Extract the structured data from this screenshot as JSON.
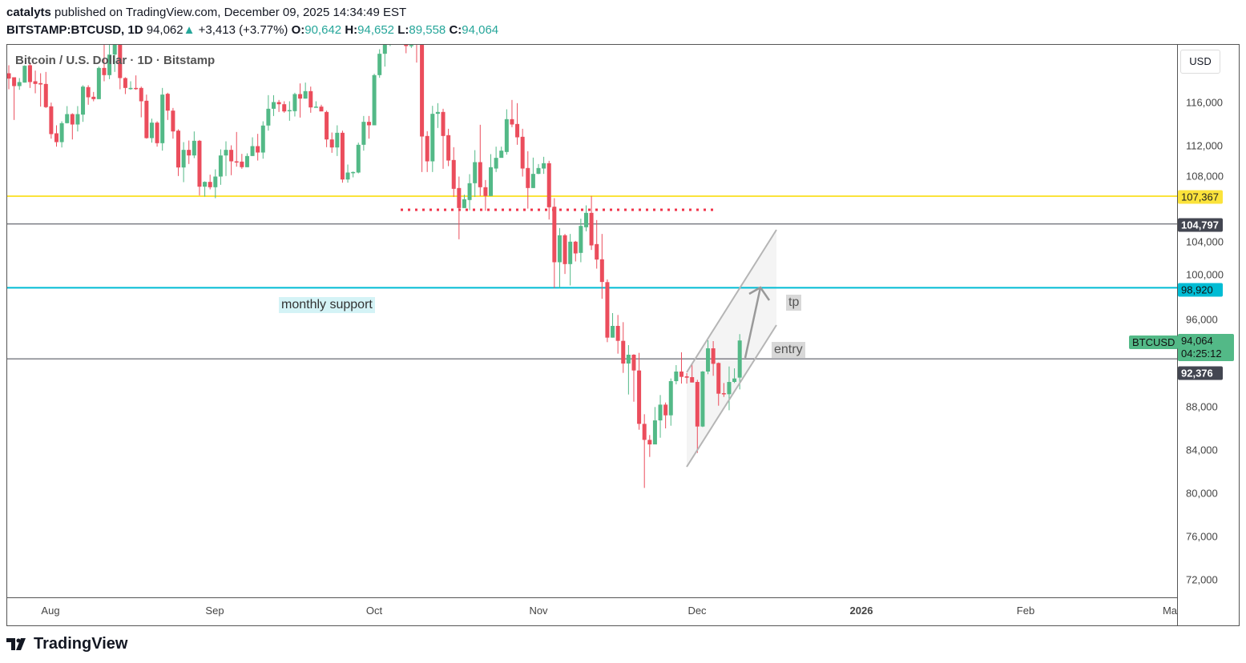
{
  "header": {
    "author": "catalyts",
    "published": " published on TradingView.com, December 09, 2025 14:34:49 EST",
    "symbol": "BITSTAMP:BTCUSD, 1D",
    "last": "94,062",
    "change": "+3,413 (+3.77%)",
    "o_label": "O:",
    "o": "90,642",
    "h_label": "H:",
    "h": "94,652",
    "l_label": "L:",
    "l": "89,558",
    "c_label": "C:",
    "c": "94,064"
  },
  "legend": "Bitcoin / U.S. Dollar · 1D · Bitstamp",
  "currency": "USD",
  "branding": "TradingView",
  "colors": {
    "up": "#53b987",
    "down": "#eb4d5c",
    "yellow": "#fbe33b",
    "cyan": "#00bcd4",
    "dark": "#434651"
  },
  "chart_data": {
    "type": "candlestick",
    "title": "Bitcoin / U.S. Dollar · 1D · Bitstamp",
    "start_date": "2025-07-24",
    "end_date": "2025-12-09",
    "ylim": [
      69500,
      121400
    ],
    "y_ticks": [
      "116,000",
      "112,000",
      "108,000",
      "104,000",
      "100,000",
      "96,000",
      "88,000",
      "84,000",
      "80,000",
      "76,000",
      "72,000"
    ],
    "x_ticks": [
      "Aug",
      "Sep",
      "Oct",
      "Nov",
      "Dec",
      "2026",
      "Feb",
      "Ma"
    ],
    "ohlc": [
      [
        118694,
        119432,
        117218,
        118202
      ],
      [
        118325,
        118325,
        114389,
        117513
      ],
      [
        117513,
        118251,
        117169,
        117882
      ],
      [
        117833,
        119432,
        117833,
        119383
      ],
      [
        119432,
        119678,
        117341,
        117882
      ],
      [
        117956,
        118940,
        116849,
        117710
      ],
      [
        117784,
        118694,
        115619,
        117661
      ],
      [
        117710,
        118817,
        115496,
        115570
      ],
      [
        115644,
        115988,
        112667,
        113085
      ],
      [
        113159,
        113897,
        111929,
        112347
      ],
      [
        112347,
        114266,
        111855,
        114094
      ],
      [
        114094,
        115668,
        114069,
        114930
      ],
      [
        114930,
        115004,
        112593,
        113971
      ],
      [
        113971,
        115668,
        113331,
        114930
      ],
      [
        114881,
        117587,
        114217,
        117464
      ],
      [
        117415,
        117587,
        115791,
        116480
      ],
      [
        116529,
        116972,
        116111,
        116308
      ],
      [
        116308,
        119309,
        116308,
        119186
      ],
      [
        119186,
        121500,
        117956,
        118522
      ],
      [
        118522,
        122300,
        118153,
        120416
      ],
      [
        120416,
        123500,
        118817,
        121800
      ],
      [
        121800,
        124400,
        117218,
        118251
      ],
      [
        118251,
        118325,
        116775,
        117341
      ],
      [
        117292,
        117956,
        117169,
        117341
      ],
      [
        117341,
        118497,
        117169,
        117292
      ],
      [
        117341,
        117464,
        114635,
        116111
      ],
      [
        116160,
        116726,
        112667,
        112716
      ],
      [
        112716,
        114512,
        112298,
        114143
      ],
      [
        114143,
        114266,
        111929,
        112249
      ],
      [
        112249,
        117341,
        111560,
        116726
      ],
      [
        116800,
        116898,
        114389,
        115250
      ],
      [
        115250,
        115496,
        112667,
        113331
      ],
      [
        113405,
        113528,
        109223,
        110010
      ],
      [
        110010,
        112347,
        108657,
        111634
      ],
      [
        111634,
        112495,
        110330,
        111117
      ],
      [
        111117,
        113331,
        110871,
        112470
      ],
      [
        112470,
        112544,
        107427,
        108239
      ],
      [
        108239,
        108731,
        107329,
        108682
      ],
      [
        108682,
        109346,
        107993,
        108190
      ],
      [
        108190,
        109838,
        107181,
        109174
      ],
      [
        109174,
        111683,
        108411,
        111117
      ],
      [
        111117,
        112421,
        109223,
        111634
      ],
      [
        111634,
        112052,
        109297,
        110576
      ],
      [
        110576,
        113282,
        110084,
        110551
      ],
      [
        110551,
        111265,
        109887,
        110035
      ],
      [
        110035,
        111314,
        110035,
        111068
      ],
      [
        111068,
        112790,
        111068,
        111978
      ],
      [
        111978,
        113110,
        110650,
        111388
      ],
      [
        111388,
        114266,
        110822,
        113876
      ],
      [
        113876,
        116677,
        113405,
        115422
      ],
      [
        115422,
        116677,
        114758,
        116037
      ],
      [
        116037,
        116234,
        115127,
        115840
      ],
      [
        115840,
        116111,
        115053,
        115176
      ],
      [
        115250,
        116111,
        114315,
        115299
      ],
      [
        115201,
        116898,
        114709,
        116775
      ],
      [
        116775,
        117759,
        114610,
        116357
      ],
      [
        116357,
        117833,
        116357,
        117046
      ],
      [
        117046,
        117464,
        115053,
        115545
      ],
      [
        115570,
        116111,
        115545,
        115619
      ],
      [
        115619,
        115791,
        115250,
        115176
      ],
      [
        115127,
        115250,
        111880,
        112593
      ],
      [
        112593,
        113233,
        111363,
        111855
      ],
      [
        111855,
        113897,
        111068,
        113208
      ],
      [
        113208,
        113405,
        108608,
        108903
      ],
      [
        108903,
        110281,
        108608,
        109543
      ],
      [
        109543,
        109641,
        109100,
        109592
      ],
      [
        109543,
        112298,
        109469,
        112101
      ],
      [
        112101,
        114758,
        111560,
        114217
      ],
      [
        114217,
        114758,
        112667,
        113897
      ],
      [
        113897,
        118645,
        113897,
        118522
      ],
      [
        118522,
        120908,
        118276,
        120490
      ],
      [
        120490,
        122600,
        119309,
        121800
      ],
      [
        121800,
        123800,
        121200,
        123200
      ],
      [
        123200,
        125600,
        122800,
        124600
      ],
      [
        124600,
        126200,
        122600,
        123000
      ],
      [
        123000,
        124200,
        120539,
        121203
      ],
      [
        121200,
        121800,
        121031,
        121300
      ],
      [
        122300,
        123100,
        119678,
        121400
      ],
      [
        121400,
        121600,
        109592,
        112864
      ],
      [
        112913,
        113356,
        109592,
        110576
      ],
      [
        110576,
        115693,
        109592,
        114955
      ],
      [
        114955,
        115939,
        113651,
        115127
      ],
      [
        115127,
        115422,
        109887,
        112913
      ],
      [
        112987,
        113577,
        110133,
        110650
      ],
      [
        110699,
        111880,
        107304,
        108042
      ],
      [
        108116,
        109174,
        103393,
        106271
      ],
      [
        106271,
        107501,
        106271,
        107083
      ],
      [
        107009,
        109395,
        106074,
        108559
      ],
      [
        108559,
        111609,
        107304,
        110502
      ],
      [
        110502,
        113946,
        107378,
        108190
      ],
      [
        108190,
        108854,
        106025,
        107378
      ],
      [
        107378,
        111240,
        107378,
        110035
      ],
      [
        109912,
        111929,
        109592,
        110896
      ],
      [
        110896,
        111929,
        111191,
        111560
      ],
      [
        111437,
        115373,
        111191,
        114463
      ],
      [
        114463,
        116234,
        113725,
        113971
      ],
      [
        114020,
        115939,
        112101,
        112790
      ],
      [
        112839,
        113577,
        109174,
        109912
      ],
      [
        109961,
        111511,
        106222,
        108116
      ],
      [
        108116,
        110920,
        108116,
        109420
      ],
      [
        109420,
        110330,
        109395,
        109961
      ],
      [
        109912,
        110994,
        109420,
        110404
      ],
      [
        110404,
        110625,
        105213,
        106345
      ],
      [
        106394,
        107181,
        98891,
        101277
      ],
      [
        101277,
        104426,
        98891,
        103762
      ],
      [
        103762,
        103885,
        100195,
        101105
      ],
      [
        101105,
        103885,
        99137,
        103172
      ],
      [
        103172,
        103245,
        101351,
        102089
      ],
      [
        102138,
        105287,
        101277,
        104623
      ],
      [
        104500,
        106517,
        104131,
        105828
      ],
      [
        105828,
        107378,
        102409,
        102827
      ],
      [
        102950,
        105164,
        100687,
        101523
      ],
      [
        101548,
        103885,
        97907,
        99457
      ],
      [
        99444,
        99690,
        93909,
        94327
      ],
      [
        94327,
        96590,
        94327,
        95409
      ],
      [
        95409,
        96418,
        92851,
        94032
      ],
      [
        94032,
        95754,
        91080,
        91941
      ],
      [
        91941,
        93638,
        89087,
        92753
      ],
      [
        92753,
        92802,
        88423,
        91301
      ],
      [
        91301,
        92925,
        85840,
        86381
      ],
      [
        86381,
        87267,
        80477,
        84905
      ],
      [
        84905,
        85348,
        83331,
        84487
      ],
      [
        84487,
        87931,
        84487,
        86701
      ],
      [
        86701,
        89038,
        85102,
        88152
      ],
      [
        88152,
        88349,
        85963,
        87168
      ],
      [
        87168,
        90563,
        86209,
        90317
      ],
      [
        90317,
        91793,
        90022,
        91203
      ],
      [
        91203,
        92974,
        90096,
        90711
      ],
      [
        90760,
        91055,
        90096,
        90637
      ],
      [
        90686,
        91867,
        90194,
        90194
      ],
      [
        90243,
        90440,
        83700,
        86135
      ],
      [
        86135,
        91252,
        86086,
        91203
      ],
      [
        91203,
        94081,
        90957,
        93343
      ],
      [
        93343,
        94007,
        90809,
        91916
      ],
      [
        91990,
        92040,
        88054,
        89161
      ],
      [
        89210,
        90145,
        88866,
        89112
      ],
      [
        89112,
        91670,
        87636,
        90243
      ],
      [
        90243,
        91498,
        90145,
        90563
      ],
      [
        90642,
        94652,
        89558,
        94064
      ]
    ],
    "levels": [
      {
        "name": "yellow-level",
        "price": 107367,
        "label": "107,367"
      },
      {
        "name": "upper-dark-level",
        "price": 104797,
        "label": "104,797"
      },
      {
        "name": "monthly-support-level",
        "price": 98920,
        "label": "98,920"
      },
      {
        "name": "lower-dark-level",
        "price": 92376,
        "label": "92,376"
      }
    ],
    "dotted_level_price": 106110,
    "current_price": {
      "symbol": "BTCUSD",
      "price": "94,064",
      "countdown": "04:25:12"
    },
    "annotations": {
      "monthly_support": "monthly support",
      "tp": "tp",
      "entry": "entry"
    }
  }
}
